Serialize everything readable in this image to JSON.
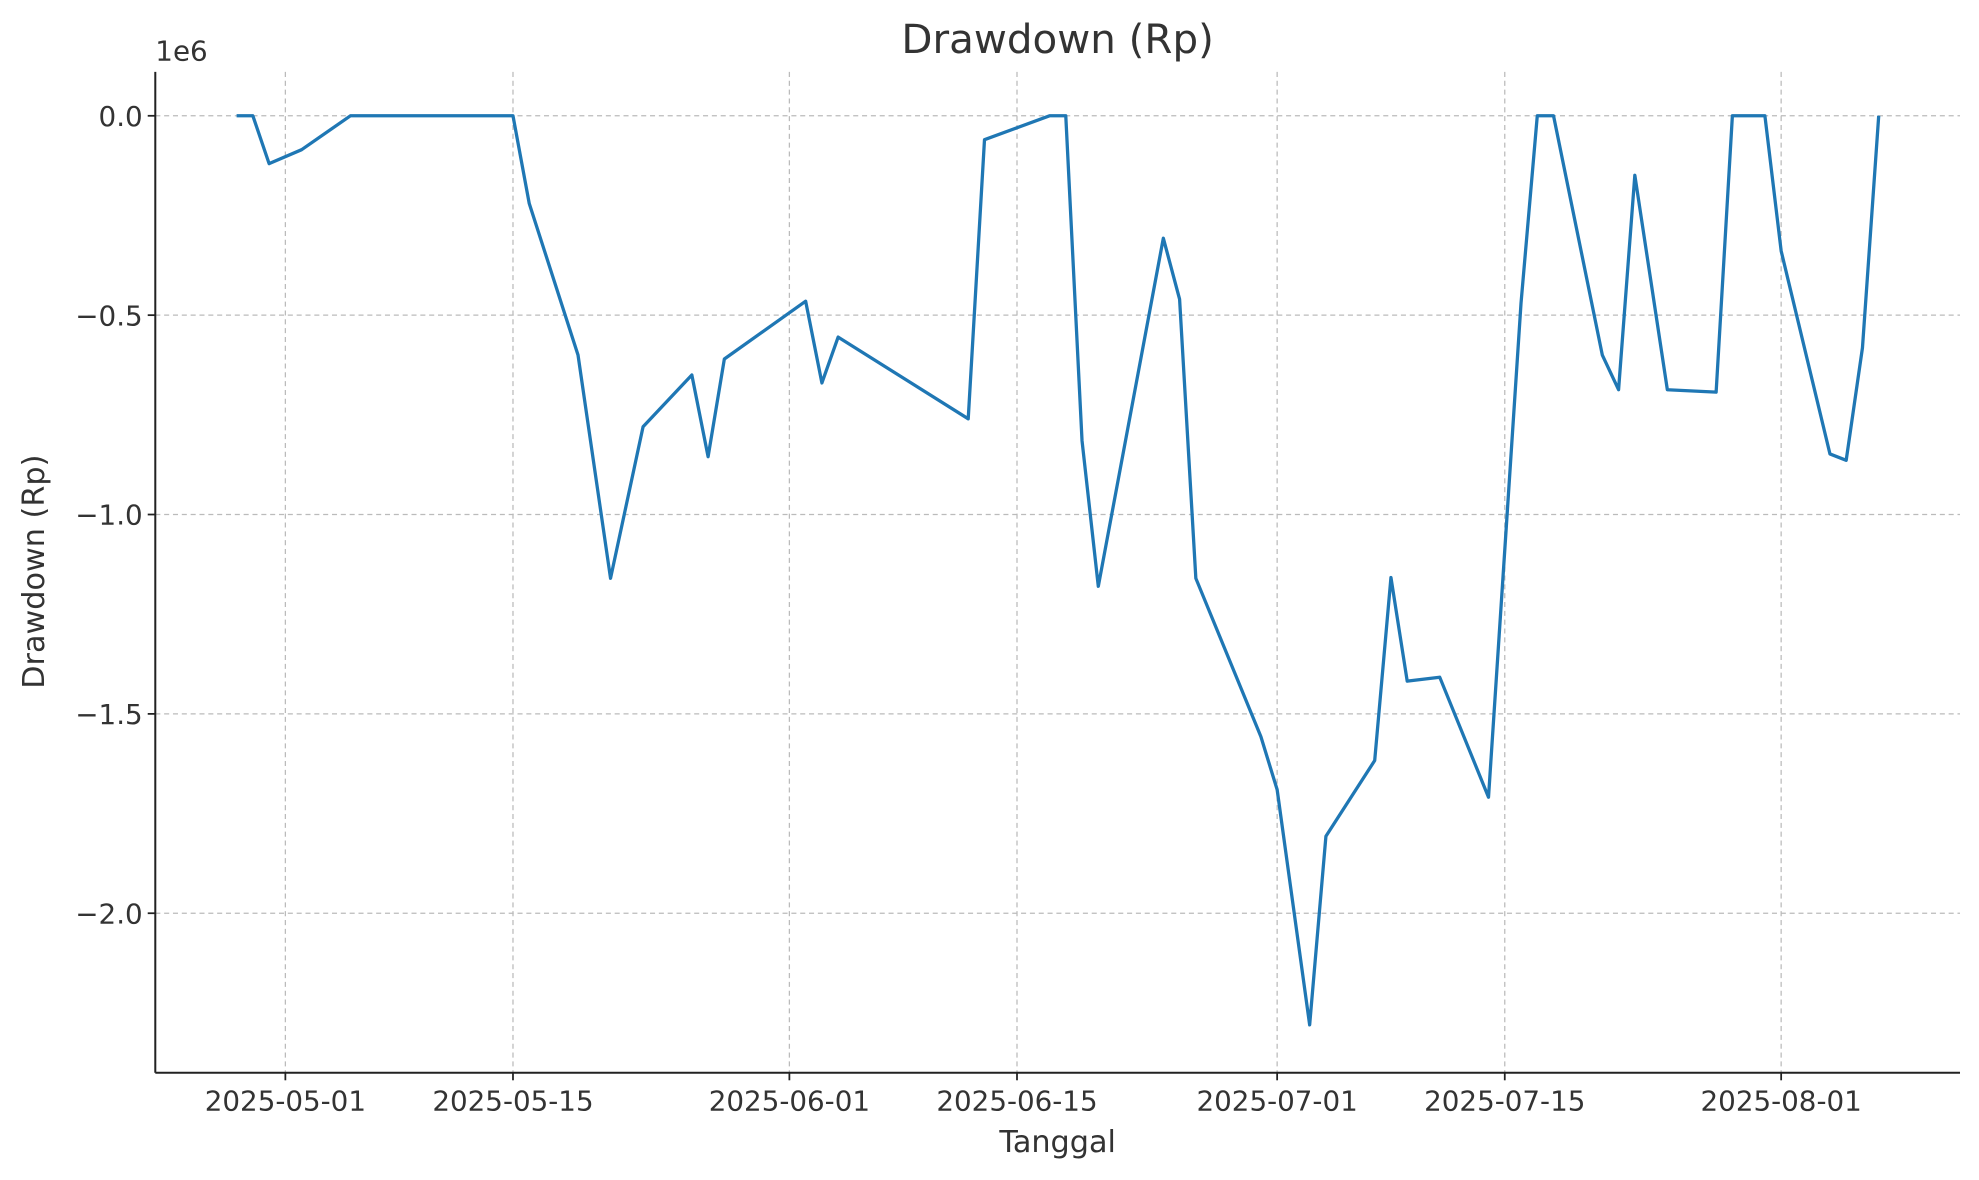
{
  "chart_data": {
    "type": "line",
    "title": "Drawdown (Rp)",
    "xlabel": "Tanggal",
    "ylabel": "Drawdown (Rp)",
    "y_offset_label": "1e6",
    "grid": true,
    "color": "#1f77b4",
    "x": [
      "2025-04-28",
      "2025-04-29",
      "2025-04-30",
      "2025-05-02",
      "2025-05-05",
      "2025-05-15",
      "2025-05-16",
      "2025-05-19",
      "2025-05-21",
      "2025-05-23",
      "2025-05-26",
      "2025-05-27",
      "2025-05-28",
      "2025-06-02",
      "2025-06-03",
      "2025-06-04",
      "2025-06-12",
      "2025-06-13",
      "2025-06-17",
      "2025-06-18",
      "2025-06-19",
      "2025-06-20",
      "2025-06-24",
      "2025-06-25",
      "2025-06-26",
      "2025-06-30",
      "2025-07-01",
      "2025-07-03",
      "2025-07-04",
      "2025-07-07",
      "2025-07-08",
      "2025-07-09",
      "2025-07-11",
      "2025-07-14",
      "2025-07-16",
      "2025-07-17",
      "2025-07-18",
      "2025-07-21",
      "2025-07-22",
      "2025-07-23",
      "2025-07-25",
      "2025-07-28",
      "2025-07-29",
      "2025-07-31",
      "2025-08-01",
      "2025-08-04",
      "2025-08-05",
      "2025-08-06",
      "2025-08-07"
    ],
    "series": [
      {
        "name": "Drawdown",
        "color": "#1f77b4",
        "values": [
          0,
          0,
          -120000,
          -85000,
          0,
          0,
          -220000,
          -600000,
          -1160000,
          -780000,
          -650000,
          -855000,
          -610000,
          -465000,
          -670000,
          -555000,
          -760000,
          -60000,
          0,
          0,
          -815000,
          -1180000,
          -307000,
          -460000,
          -1160000,
          -1557000,
          -1690000,
          -2280000,
          -1807000,
          -1617000,
          -1158000,
          -1418000,
          -1408000,
          -1709000,
          -470000,
          0,
          0,
          -600000,
          -687000,
          -149000,
          -687000,
          -693000,
          0,
          0,
          -339000,
          -848000,
          -864000,
          -582000,
          0
        ]
      }
    ],
    "xlim": [
      "2025-04-23",
      "2025-08-12"
    ],
    "xticks": [
      "2025-05-01",
      "2025-05-15",
      "2025-06-01",
      "2025-06-15",
      "2025-07-01",
      "2025-07-15",
      "2025-08-01"
    ],
    "ylim": [
      -2400000,
      110000
    ],
    "yticks": [
      {
        "value": 0,
        "label": "0.0"
      },
      {
        "value": -500000,
        "label": "−0.5"
      },
      {
        "value": -1000000,
        "label": "−1.0"
      },
      {
        "value": -1500000,
        "label": "−1.5"
      },
      {
        "value": -2000000,
        "label": "−2.0"
      }
    ]
  }
}
